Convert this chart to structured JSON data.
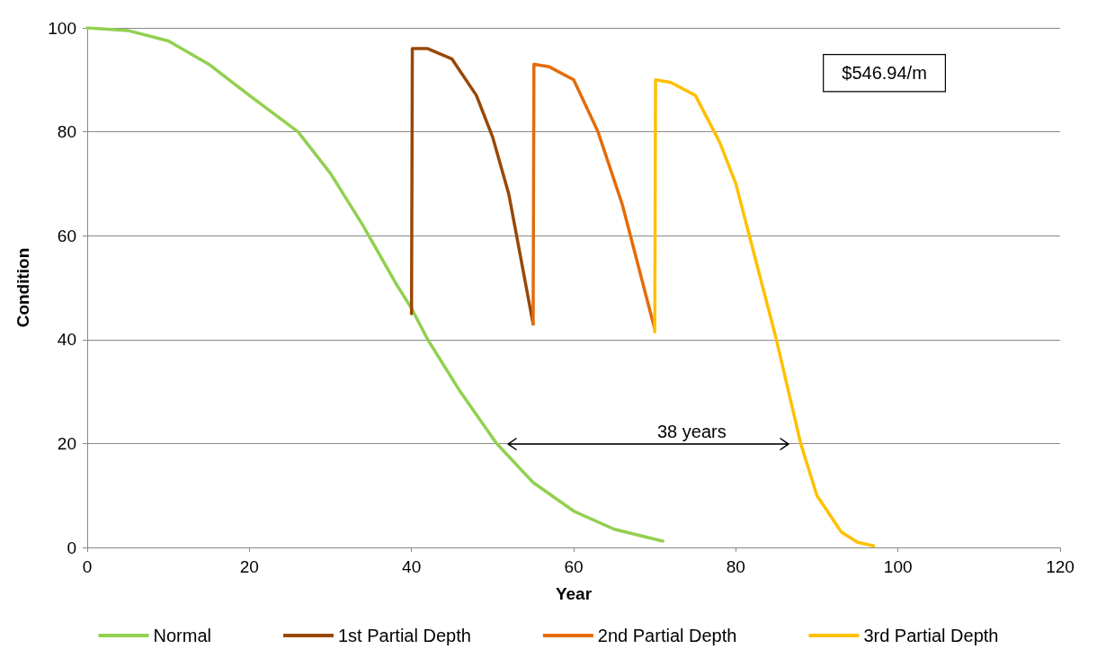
{
  "chart_data": {
    "type": "line",
    "xlabel": "Year",
    "ylabel": "Condition",
    "xlim": [
      0,
      120
    ],
    "xticks": [
      0,
      20,
      40,
      60,
      80,
      100,
      120
    ],
    "ylim": [
      0,
      100
    ],
    "yticks": [
      0,
      20,
      40,
      60,
      80,
      100
    ],
    "grid": "y",
    "legend": "bottom",
    "marker": "none",
    "line_style": "solid",
    "annotations": [
      "$546.94/m",
      "38 years"
    ],
    "series": [
      {
        "name": "Normal",
        "color": "#92d050",
        "x": [
          0,
          5,
          10,
          15,
          20,
          26,
          30,
          34,
          38,
          40,
          42,
          46,
          50.5,
          55,
          60,
          65,
          71
        ],
        "values": [
          100,
          99.5,
          97.5,
          93,
          87,
          80,
          72,
          62,
          51,
          46,
          40,
          30,
          20,
          12.5,
          7,
          3.5,
          1.2
        ]
      },
      {
        "name": "1st Partial Depth",
        "color": "#984807",
        "x": [
          40,
          40.1,
          42,
          45,
          48,
          50,
          52,
          55
        ],
        "values": [
          45,
          96,
          96,
          94,
          87,
          79,
          68,
          43
        ]
      },
      {
        "name": "2nd Partial Depth",
        "color": "#e46c0a",
        "x": [
          55,
          55.1,
          57,
          60,
          63,
          66,
          70
        ],
        "values": [
          43,
          93,
          92.5,
          90,
          80,
          66,
          42
        ]
      },
      {
        "name": "3rd Partial Depth",
        "color": "#ffc000",
        "x": [
          70,
          70.1,
          72,
          75,
          78,
          80,
          82,
          85,
          88,
          90,
          93,
          95,
          97
        ],
        "values": [
          41.5,
          90,
          89.5,
          87,
          78,
          70,
          58,
          40,
          20,
          10,
          3,
          1,
          0.3
        ]
      }
    ]
  }
}
